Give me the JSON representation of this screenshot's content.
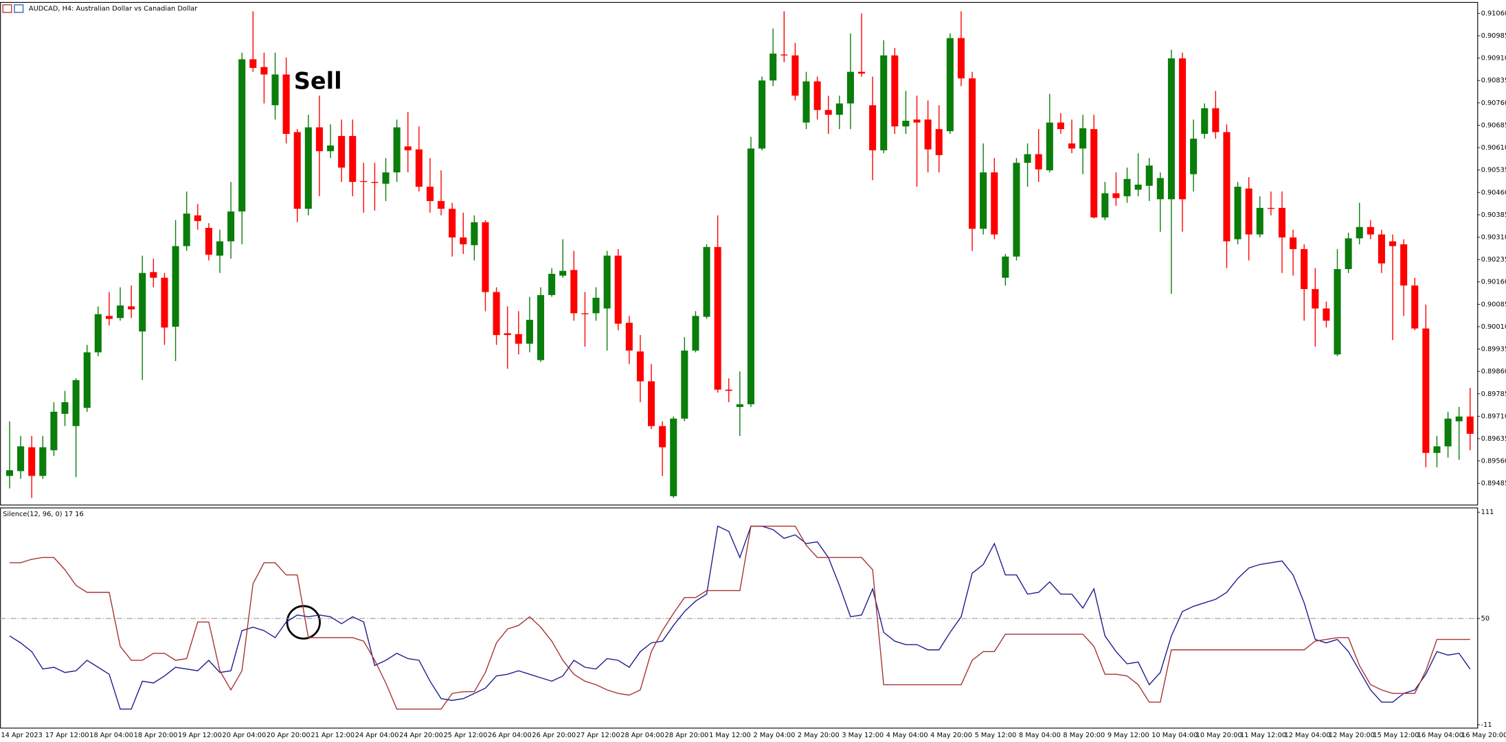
{
  "chart_data": [
    {
      "type": "candlestick",
      "title": "AUDCAD, H4:  Australian Dollar vs Canadian Dollar",
      "annotation": "Sell",
      "up_color": "#0a7d0a",
      "down_color": "#ff0000",
      "categories": [
        "14 Apr 2023",
        null,
        null,
        null,
        "17 Apr 12:00",
        null,
        null,
        null,
        "18 Apr 04:00",
        null,
        null,
        null,
        "18 Apr 20:00",
        null,
        null,
        null,
        "19 Apr 12:00",
        null,
        null,
        null,
        "20 Apr 04:00",
        null,
        null,
        null,
        "20 Apr 20:00",
        null,
        null,
        null,
        "21 Apr 12:00",
        null,
        null,
        null,
        "24 Apr 04:00",
        null,
        null,
        null,
        "24 Apr 20:00",
        null,
        null,
        null,
        "25 Apr 12:00",
        null,
        null,
        null,
        "26 Apr 04:00",
        null,
        null,
        null,
        "26 Apr 20:00",
        null,
        null,
        null,
        "27 Apr 12:00",
        null,
        null,
        null,
        "28 Apr 04:00",
        null,
        null,
        null,
        "28 Apr 20:00",
        null,
        null,
        null,
        "1 May 12:00",
        null,
        null,
        null,
        "2 May 04:00",
        null,
        null,
        null,
        "2 May 20:00",
        null,
        null,
        null,
        "3 May 12:00",
        null,
        null,
        null,
        "4 May 04:00",
        null,
        null,
        null,
        "4 May 20:00",
        null,
        null,
        null,
        "5 May 12:00",
        null,
        null,
        null,
        "8 May 04:00",
        null,
        null,
        null,
        "8 May 20:00",
        null,
        null,
        null,
        "9 May 12:00",
        null,
        null,
        null,
        "10 May 04:00",
        null,
        null,
        null,
        "10 May 20:00",
        null,
        null,
        null,
        "11 May 12:00",
        null,
        null,
        null,
        "12 May 04:00",
        null,
        null,
        null,
        "12 May 20:00",
        null,
        null,
        null,
        "15 May 12:00",
        null,
        null,
        null,
        "16 May 04:00",
        null,
        null,
        null,
        "16 May 20:00"
      ],
      "open": [
        0.8951,
        0.89526,
        0.89606,
        0.8951,
        0.89596,
        0.89718,
        0.89677,
        0.89738,
        0.89924,
        0.90046,
        0.90039,
        0.90078,
        0.89994,
        0.90193,
        0.90174,
        0.9001,
        0.9028,
        0.90383,
        0.90341,
        0.90248,
        0.90296,
        0.90396,
        0.90906,
        0.9088,
        0.90752,
        0.90855,
        0.90662,
        0.90405,
        0.90678,
        0.90598,
        0.90649,
        0.90649,
        0.90498,
        0.90495,
        0.90489,
        0.90527,
        0.90614,
        0.90604,
        0.90479,
        0.90431,
        0.90405,
        0.90309,
        0.90283,
        0.9036,
        0.90126,
        0.89988,
        0.89985,
        0.89953,
        0.89898,
        0.90116,
        0.90181,
        0.902,
        0.90055,
        0.90055,
        0.90071,
        0.90248,
        0.90023,
        0.89927,
        0.89827,
        0.89677,
        0.89442,
        0.89702,
        0.8993,
        0.90043,
        0.90277,
        0.89799,
        0.89741,
        0.8975,
        0.90607,
        0.90835,
        0.90922,
        0.90919,
        0.90694,
        0.90832,
        0.90736,
        0.9072,
        0.90758,
        0.90864,
        0.90752,
        0.90601,
        0.90919,
        0.90681,
        0.90704,
        0.90704,
        0.90672,
        0.90665,
        0.90977,
        0.90842,
        0.90338,
        0.90527,
        0.90174,
        0.90245,
        0.90559,
        0.90588,
        0.90534,
        0.90694,
        0.90624,
        0.90607,
        0.90672,
        0.90376,
        0.90457,
        0.90447,
        0.90469,
        0.90482,
        0.90437,
        0.90437,
        0.90909,
        0.90521,
        0.90656,
        0.90742,
        0.90662,
        0.90303,
        0.90473,
        0.90319,
        0.90408,
        0.90408,
        0.90309,
        0.9027,
        0.90136,
        0.90071,
        0.89917,
        0.90203,
        0.90306,
        0.90344,
        0.90319,
        0.90296,
        0.90286,
        0.90148,
        0.90004,
        0.89587,
        0.89609,
        0.89693,
        0.89709
      ],
      "high": [
        0.89693,
        0.89644,
        0.89644,
        0.89644,
        0.89757,
        0.89795,
        0.89837,
        0.89949,
        0.90078,
        0.90126,
        0.90142,
        0.90148,
        0.90248,
        0.90238,
        0.9019,
        0.90367,
        0.90463,
        0.90421,
        0.90357,
        0.90335,
        0.90495,
        0.90928,
        0.91067,
        0.90928,
        0.90928,
        0.90912,
        0.90672,
        0.9072,
        0.90784,
        0.90688,
        0.90704,
        0.90704,
        0.90559,
        0.90559,
        0.90575,
        0.90704,
        0.90729,
        0.90681,
        0.90575,
        0.90534,
        0.90425,
        0.90392,
        0.90383,
        0.90367,
        0.90142,
        0.90078,
        0.90062,
        0.9011,
        0.90142,
        0.90206,
        0.90303,
        0.90264,
        0.90126,
        0.90142,
        0.90264,
        0.9027,
        0.90046,
        0.89982,
        0.89885,
        0.89693,
        0.89709,
        0.89975,
        0.90062,
        0.90286,
        0.90383,
        0.89837,
        0.8986,
        0.90646,
        0.90848,
        0.91009,
        0.91067,
        0.90961,
        0.90864,
        0.90848,
        0.90784,
        0.90784,
        0.90993,
        0.9106,
        0.90848,
        0.9097,
        0.90944,
        0.908,
        0.90784,
        0.90768,
        0.90752,
        0.90993,
        0.91067,
        0.90864,
        0.90624,
        0.90575,
        0.90254,
        0.90575,
        0.90624,
        0.90672,
        0.9079,
        0.90726,
        0.90704,
        0.9072,
        0.9072,
        0.90495,
        0.90527,
        0.90543,
        0.90591,
        0.90575,
        0.90527,
        0.90938,
        0.90928,
        0.90704,
        0.90758,
        0.908,
        0.90688,
        0.90495,
        0.90511,
        0.90447,
        0.90463,
        0.90463,
        0.90335,
        0.90286,
        0.90206,
        0.90094,
        0.9027,
        0.90325,
        0.90425,
        0.90367,
        0.90335,
        0.90319,
        0.90303,
        0.90174,
        0.90084,
        0.89644,
        0.89725,
        0.89741,
        0.89805
      ],
      "low": [
        0.89468,
        0.895,
        0.89436,
        0.895,
        0.89577,
        0.89677,
        0.89506,
        0.89725,
        0.89911,
        0.90014,
        0.9003,
        0.90039,
        0.89831,
        0.90142,
        0.89949,
        0.89895,
        0.90264,
        0.90335,
        0.90232,
        0.9019,
        0.90238,
        0.90286,
        0.90864,
        0.90758,
        0.90704,
        0.90624,
        0.9036,
        0.90383,
        0.90447,
        0.90575,
        0.90495,
        0.90447,
        0.90392,
        0.90399,
        0.90431,
        0.90495,
        0.90527,
        0.90463,
        0.90392,
        0.90383,
        0.90245,
        0.90254,
        0.90232,
        0.90062,
        0.89949,
        0.89869,
        0.89917,
        0.89924,
        0.89892,
        0.9011,
        0.90174,
        0.9003,
        0.89943,
        0.9003,
        0.8993,
        0.89998,
        0.89885,
        0.89757,
        0.89667,
        0.8951,
        0.89436,
        0.89693,
        0.89924,
        0.90036,
        0.89789,
        0.89757,
        0.89644,
        0.89741,
        0.90601,
        0.90816,
        0.90896,
        0.90768,
        0.90672,
        0.90704,
        0.90656,
        0.90672,
        0.90672,
        0.90848,
        0.90501,
        0.90591,
        0.90656,
        0.90656,
        0.90479,
        0.90527,
        0.90527,
        0.90656,
        0.90816,
        0.90264,
        0.90319,
        0.90303,
        0.90148,
        0.90232,
        0.90479,
        0.90495,
        0.90527,
        0.90656,
        0.90591,
        0.90521,
        0.90373,
        0.90367,
        0.90415,
        0.90425,
        0.90447,
        0.90431,
        0.90328,
        0.9012,
        0.90328,
        0.90463,
        0.9064,
        0.9064,
        0.90206,
        0.90286,
        0.90232,
        0.90309,
        0.90383,
        0.9019,
        0.90181,
        0.9003,
        0.89943,
        0.90007,
        0.89911,
        0.9019,
        0.90286,
        0.90303,
        0.9019,
        0.89965,
        0.90046,
        0.89998,
        0.89539,
        0.89539,
        0.89571,
        0.89564,
        0.89596
      ],
      "close": [
        0.89529,
        0.89609,
        0.8951,
        0.89606,
        0.89725,
        0.89757,
        0.89831,
        0.89924,
        0.90052,
        0.90036,
        0.90081,
        0.90068,
        0.9019,
        0.90174,
        0.90007,
        0.9028,
        0.90389,
        0.90364,
        0.90251,
        0.90296,
        0.90396,
        0.90906,
        0.90877,
        0.90855,
        0.90855,
        0.90656,
        0.90405,
        0.90678,
        0.90598,
        0.90617,
        0.90543,
        0.90495,
        0.90495,
        0.90492,
        0.90527,
        0.90678,
        0.90601,
        0.90479,
        0.90431,
        0.90405,
        0.90309,
        0.90286,
        0.9036,
        0.90126,
        0.89982,
        0.89982,
        0.89953,
        0.90033,
        0.90116,
        0.90187,
        0.90197,
        0.90055,
        0.90052,
        0.90107,
        0.90248,
        0.9002,
        0.8993,
        0.89827,
        0.89677,
        0.89606,
        0.89702,
        0.8993,
        0.90046,
        0.90277,
        0.89799,
        0.89795,
        0.8975,
        0.90607,
        0.90835,
        0.90925,
        0.90919,
        0.90784,
        0.90832,
        0.90736,
        0.9072,
        0.90758,
        0.90864,
        0.90858,
        0.90601,
        0.90919,
        0.90681,
        0.907,
        0.90694,
        0.90604,
        0.90585,
        0.90977,
        0.90842,
        0.90338,
        0.90527,
        0.90319,
        0.90245,
        0.90559,
        0.90588,
        0.90537,
        0.90694,
        0.90672,
        0.90607,
        0.90675,
        0.90376,
        0.90457,
        0.90441,
        0.90505,
        0.90486,
        0.9055,
        0.90508,
        0.90909,
        0.90437,
        0.9064,
        0.90742,
        0.90662,
        0.90296,
        0.90479,
        0.90319,
        0.90408,
        0.90405,
        0.90309,
        0.9027,
        0.90136,
        0.90071,
        0.9003,
        0.90203,
        0.90306,
        0.90344,
        0.90319,
        0.90222,
        0.9028,
        0.90148,
        0.90004,
        0.89587,
        0.89609,
        0.89702,
        0.89709,
        0.89651
      ],
      "ylim": [
        0.89414,
        0.91095
      ],
      "yticks": [
        {
          "value": 0.9106,
          "label": "0.91060"
        },
        0.90985,
        {
          "value": 0.9091,
          "label": "0.90910"
        },
        0.90835,
        {
          "value": 0.9076,
          "label": "0.90760"
        },
        0.90685,
        {
          "value": 0.9061,
          "label": "0.90610"
        },
        0.90535,
        {
          "value": 0.9046,
          "label": "0.90460"
        },
        0.90385,
        {
          "value": 0.9031,
          "label": "0.90310"
        },
        0.90235,
        {
          "value": 0.9016,
          "label": "0.90160"
        },
        0.90085,
        {
          "value": 0.9001,
          "label": "0.90010"
        },
        0.89935,
        {
          "value": 0.8986,
          "label": "0.89860"
        },
        0.89785,
        {
          "value": 0.8971,
          "label": "0.89710"
        },
        0.89635,
        {
          "value": 0.8956,
          "label": "0.89560"
        },
        0.89485
      ]
    },
    {
      "type": "line",
      "title": "Silence(12, 96, 0) 17 16",
      "series": [
        {
          "color": "#1c1c8f",
          "values": [
            40,
            36,
            31,
            21,
            22,
            19,
            20,
            26,
            22,
            18,
            -2,
            -2,
            14,
            13,
            17,
            22,
            21,
            20,
            26,
            19,
            20,
            43,
            45,
            43,
            39,
            48,
            52,
            51,
            52,
            51,
            47,
            51,
            48,
            23,
            26,
            30,
            27,
            26,
            14,
            4,
            3,
            4,
            7,
            10,
            17,
            18,
            20,
            18,
            16,
            14,
            17,
            26,
            22,
            21,
            27,
            26,
            22,
            31,
            36,
            37,
            46,
            54,
            60,
            64,
            103,
            100,
            85,
            103,
            103,
            101,
            96,
            98,
            93,
            94,
            85,
            69,
            51,
            52,
            67,
            42,
            37,
            35,
            35,
            32,
            32,
            42,
            51,
            76,
            81,
            93,
            75,
            75,
            64,
            65,
            71,
            64,
            64,
            56,
            67,
            40,
            31,
            24,
            25,
            12,
            19,
            40,
            54,
            57,
            59,
            61,
            65,
            73,
            79,
            81,
            82,
            83,
            75,
            59,
            38,
            36,
            38,
            31,
            20,
            9,
            2,
            2,
            7,
            9,
            18,
            31,
            29,
            30,
            21
          ]
        },
        {
          "color": "#a83232",
          "values": [
            82,
            82,
            84,
            85,
            85,
            78,
            69,
            65,
            65,
            65,
            34,
            26,
            26,
            30,
            30,
            26,
            27,
            48,
            48,
            20,
            9,
            20,
            70,
            82,
            82,
            75,
            75,
            39,
            39,
            39,
            39,
            39,
            37,
            26,
            13,
            -2,
            -2,
            -2,
            -2,
            -2,
            7,
            8,
            8,
            19,
            36,
            44,
            46,
            51,
            45,
            37,
            26,
            18,
            14,
            12,
            9,
            7,
            6,
            9,
            31,
            43,
            53,
            62,
            62,
            66,
            66,
            66,
            66,
            103,
            103,
            103,
            103,
            103,
            92,
            85,
            85,
            85,
            85,
            85,
            78,
            12,
            12,
            12,
            12,
            12,
            12,
            12,
            12,
            26,
            31,
            31,
            41,
            41,
            41,
            41,
            41,
            41,
            41,
            41,
            34,
            18,
            18,
            17,
            12,
            2,
            2,
            32,
            32,
            32,
            32,
            32,
            32,
            32,
            32,
            32,
            32,
            32,
            32,
            32,
            37,
            38,
            39,
            39,
            23,
            12,
            9,
            7,
            7,
            7,
            20,
            38,
            38,
            38,
            38
          ]
        }
      ],
      "level": 50,
      "ylim": [
        -11,
        111
      ],
      "yticks": [
        111,
        50,
        -11
      ]
    }
  ]
}
